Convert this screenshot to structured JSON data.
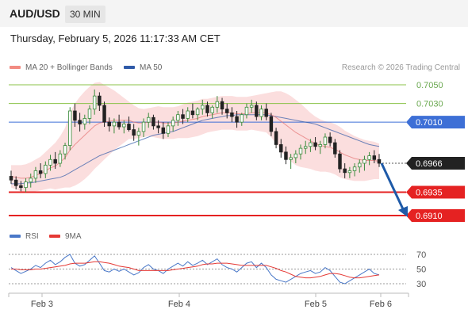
{
  "header": {
    "symbol": "AUD/USD",
    "timeframe": "30 MIN"
  },
  "datetime": "Thursday, February 5, 2026 11:17:33 AM CET",
  "credit": "Research © 2026 Trading Central",
  "legend": {
    "bollinger": {
      "label": "MA 20 + Bollinger Bands",
      "color": "#f28b82"
    },
    "ma50": {
      "label": "MA 50",
      "color": "#2f5aa8"
    },
    "rsi": {
      "label": "RSI",
      "color": "#4a78c8"
    },
    "rsi_ma": {
      "label": "9MA",
      "color": "#e53935"
    }
  },
  "chart_data": {
    "type": "candlestick",
    "x_ticks": [
      "Feb 3",
      "Feb 4",
      "Feb 5",
      "Feb 6"
    ],
    "price_range": [
      0.6905,
      0.7058
    ],
    "levels": [
      {
        "value": 0.705,
        "label": "0.7050",
        "kind": "resistance-green",
        "color": "#8bc34a"
      },
      {
        "value": 0.703,
        "label": "0.7030",
        "kind": "resistance-green",
        "color": "#8bc34a"
      },
      {
        "value": 0.701,
        "label": "0.7010",
        "kind": "pivot",
        "color": "#3d6fd6"
      },
      {
        "value": 0.6966,
        "label": "0.6966",
        "kind": "last-price",
        "color": "#222222"
      },
      {
        "value": 0.6935,
        "label": "0.6935",
        "kind": "support",
        "color": "#e52222"
      },
      {
        "value": 0.691,
        "label": "0.6910",
        "kind": "support",
        "color": "#e52222"
      }
    ],
    "candles": [
      [
        0.6952,
        0.6958,
        0.6944,
        0.6948
      ],
      [
        0.6948,
        0.6952,
        0.6938,
        0.6942
      ],
      [
        0.6942,
        0.6947,
        0.6936,
        0.694
      ],
      [
        0.694,
        0.695,
        0.6935,
        0.6946
      ],
      [
        0.6946,
        0.6955,
        0.694,
        0.695
      ],
      [
        0.695,
        0.6962,
        0.6945,
        0.6958
      ],
      [
        0.6958,
        0.6966,
        0.695,
        0.6955
      ],
      [
        0.6955,
        0.6968,
        0.695,
        0.6964
      ],
      [
        0.6964,
        0.6975,
        0.6958,
        0.697
      ],
      [
        0.697,
        0.6978,
        0.696,
        0.6966
      ],
      [
        0.6966,
        0.698,
        0.6962,
        0.6976
      ],
      [
        0.6976,
        0.6988,
        0.697,
        0.6985
      ],
      [
        0.6985,
        0.7026,
        0.698,
        0.7022
      ],
      [
        0.7022,
        0.703,
        0.7005,
        0.7012
      ],
      [
        0.7012,
        0.702,
        0.7,
        0.7008
      ],
      [
        0.7008,
        0.7018,
        0.7002,
        0.7014
      ],
      [
        0.7014,
        0.7028,
        0.7008,
        0.7024
      ],
      [
        0.7024,
        0.7045,
        0.7018,
        0.7038
      ],
      [
        0.7038,
        0.7042,
        0.7022,
        0.7028
      ],
      [
        0.7028,
        0.7032,
        0.7005,
        0.701
      ],
      [
        0.701,
        0.7015,
        0.7,
        0.7006
      ],
      [
        0.7006,
        0.7014,
        0.6998,
        0.701
      ],
      [
        0.701,
        0.7018,
        0.7002,
        0.7005
      ],
      [
        0.7005,
        0.7012,
        0.6998,
        0.7008
      ],
      [
        0.7008,
        0.7016,
        0.7,
        0.7002
      ],
      [
        0.7002,
        0.7008,
        0.699,
        0.6996
      ],
      [
        0.6996,
        0.7004,
        0.6985,
        0.7
      ],
      [
        0.7,
        0.7014,
        0.6994,
        0.701
      ],
      [
        0.701,
        0.702,
        0.7004,
        0.7015
      ],
      [
        0.7015,
        0.7018,
        0.7002,
        0.7006
      ],
      [
        0.7006,
        0.7012,
        0.6998,
        0.7004
      ],
      [
        0.7004,
        0.701,
        0.6992,
        0.6998
      ],
      [
        0.6998,
        0.701,
        0.6994,
        0.7006
      ],
      [
        0.7006,
        0.7016,
        0.7,
        0.7012
      ],
      [
        0.7012,
        0.7022,
        0.7006,
        0.7018
      ],
      [
        0.7018,
        0.7024,
        0.7008,
        0.7014
      ],
      [
        0.7014,
        0.7026,
        0.701,
        0.7022
      ],
      [
        0.7022,
        0.703,
        0.7014,
        0.7018
      ],
      [
        0.7018,
        0.7026,
        0.7012,
        0.7024
      ],
      [
        0.7024,
        0.7034,
        0.7018,
        0.7028
      ],
      [
        0.7028,
        0.7032,
        0.7016,
        0.702
      ],
      [
        0.702,
        0.7028,
        0.7014,
        0.7026
      ],
      [
        0.7026,
        0.7038,
        0.702,
        0.7032
      ],
      [
        0.7032,
        0.7036,
        0.7018,
        0.7024
      ],
      [
        0.7024,
        0.703,
        0.7014,
        0.702
      ],
      [
        0.702,
        0.7026,
        0.701,
        0.7016
      ],
      [
        0.7016,
        0.7022,
        0.7004,
        0.701
      ],
      [
        0.701,
        0.702,
        0.7006,
        0.7018
      ],
      [
        0.7018,
        0.703,
        0.7014,
        0.7026
      ],
      [
        0.7026,
        0.7034,
        0.702,
        0.7028
      ],
      [
        0.7028,
        0.7032,
        0.7012,
        0.7016
      ],
      [
        0.7016,
        0.7028,
        0.7012,
        0.7024
      ],
      [
        0.7024,
        0.703,
        0.7012,
        0.7016
      ],
      [
        0.7016,
        0.702,
        0.6995,
        0.7
      ],
      [
        0.7,
        0.7004,
        0.6982,
        0.6986
      ],
      [
        0.6986,
        0.6992,
        0.6972,
        0.6978
      ],
      [
        0.6978,
        0.6984,
        0.6965,
        0.697
      ],
      [
        0.697,
        0.6976,
        0.696,
        0.6972
      ],
      [
        0.6972,
        0.698,
        0.6966,
        0.6976
      ],
      [
        0.6976,
        0.6986,
        0.697,
        0.6982
      ],
      [
        0.6982,
        0.699,
        0.6976,
        0.6984
      ],
      [
        0.6984,
        0.6992,
        0.6978,
        0.6988
      ],
      [
        0.6988,
        0.6994,
        0.698,
        0.6984
      ],
      [
        0.6984,
        0.699,
        0.6976,
        0.6986
      ],
      [
        0.6986,
        0.6998,
        0.6982,
        0.6994
      ],
      [
        0.6994,
        0.6999,
        0.6984,
        0.6988
      ],
      [
        0.6988,
        0.6992,
        0.6972,
        0.6976
      ],
      [
        0.6976,
        0.698,
        0.6956,
        0.696
      ],
      [
        0.696,
        0.6966,
        0.695,
        0.6956
      ],
      [
        0.6956,
        0.6962,
        0.695,
        0.6958
      ],
      [
        0.6958,
        0.6966,
        0.6952,
        0.6962
      ],
      [
        0.6962,
        0.697,
        0.6956,
        0.6966
      ],
      [
        0.6966,
        0.6974,
        0.6958,
        0.697
      ],
      [
        0.697,
        0.6978,
        0.6964,
        0.6974
      ],
      [
        0.6974,
        0.698,
        0.6966,
        0.697
      ],
      [
        0.697,
        0.6976,
        0.6962,
        0.6966
      ]
    ],
    "ma20": [
      0.6952,
      0.6951,
      0.695,
      0.695,
      0.6951,
      0.6953,
      0.6955,
      0.6958,
      0.6961,
      0.6963,
      0.6967,
      0.6972,
      0.698,
      0.6986,
      0.6991,
      0.6996,
      0.7001,
      0.7006,
      0.7009,
      0.701,
      0.7011,
      0.7012,
      0.7012,
      0.7012,
      0.7012,
      0.701,
      0.7009,
      0.7009,
      0.701,
      0.701,
      0.701,
      0.7009,
      0.7009,
      0.7009,
      0.701,
      0.7011,
      0.7012,
      0.7013,
      0.7014,
      0.7016,
      0.7017,
      0.7018,
      0.7019,
      0.702,
      0.702,
      0.702,
      0.7019,
      0.7019,
      0.7019,
      0.702,
      0.702,
      0.702,
      0.702,
      0.7018,
      0.7015,
      0.7011,
      0.7007,
      0.7003,
      0.6999,
      0.6996,
      0.6993,
      0.699,
      0.6987,
      0.6985,
      0.6984,
      0.6983,
      0.6981,
      0.6978,
      0.6975,
      0.6973,
      0.6971,
      0.697,
      0.6969,
      0.6969,
      0.6969,
      0.6968
    ],
    "bb_width": [
      0.0012,
      0.0013,
      0.0014,
      0.0015,
      0.0016,
      0.0017,
      0.0018,
      0.002,
      0.0022,
      0.0025,
      0.0028,
      0.0032,
      0.004,
      0.0044,
      0.0046,
      0.0047,
      0.0047,
      0.0046,
      0.0044,
      0.004,
      0.0036,
      0.0032,
      0.0028,
      0.0024,
      0.002,
      0.0018,
      0.0016,
      0.0015,
      0.0015,
      0.0016,
      0.0017,
      0.0017,
      0.0017,
      0.0017,
      0.0017,
      0.0018,
      0.0019,
      0.0019,
      0.0019,
      0.0019,
      0.0018,
      0.0018,
      0.0018,
      0.0018,
      0.0018,
      0.0018,
      0.0018,
      0.0018,
      0.0018,
      0.0018,
      0.0019,
      0.002,
      0.0021,
      0.0024,
      0.0028,
      0.0032,
      0.0034,
      0.0035,
      0.0035,
      0.0034,
      0.0032,
      0.003,
      0.0029,
      0.0028,
      0.0027,
      0.0027,
      0.0027,
      0.0027,
      0.0026,
      0.0025,
      0.0024,
      0.0023,
      0.0022,
      0.0021,
      0.002,
      0.0019
    ],
    "ma50": [
      0.6944,
      0.6944,
      0.6944,
      0.6945,
      0.6945,
      0.6946,
      0.6947,
      0.6948,
      0.6949,
      0.695,
      0.6951,
      0.6953,
      0.6956,
      0.6959,
      0.6962,
      0.6965,
      0.6968,
      0.6971,
      0.6974,
      0.6976,
      0.6978,
      0.698,
      0.6982,
      0.6984,
      0.6986,
      0.6988,
      0.699,
      0.6992,
      0.6994,
      0.6996,
      0.6997,
      0.6998,
      0.6999,
      0.7,
      0.7002,
      0.7004,
      0.7006,
      0.7008,
      0.701,
      0.7012,
      0.7013,
      0.7014,
      0.7015,
      0.7016,
      0.7017,
      0.7017,
      0.7018,
      0.7018,
      0.7018,
      0.7018,
      0.7018,
      0.7018,
      0.7018,
      0.7017,
      0.7016,
      0.7015,
      0.7014,
      0.7013,
      0.7012,
      0.7011,
      0.701,
      0.7009,
      0.7008,
      0.7006,
      0.7004,
      0.7002,
      0.7,
      0.6998,
      0.6996,
      0.6994,
      0.6992,
      0.699,
      0.6988,
      0.6986,
      0.6985,
      0.6984
    ],
    "rsi": {
      "range": [
        20,
        80
      ],
      "levels": [
        "70",
        "50",
        "30"
      ],
      "values": [
        52,
        48,
        44,
        47,
        50,
        55,
        52,
        58,
        62,
        56,
        60,
        66,
        70,
        58,
        54,
        56,
        62,
        68,
        58,
        48,
        46,
        50,
        47,
        50,
        46,
        42,
        45,
        52,
        56,
        50,
        48,
        44,
        50,
        54,
        58,
        54,
        60,
        55,
        58,
        62,
        56,
        60,
        64,
        56,
        52,
        50,
        46,
        52,
        58,
        60,
        52,
        58,
        52,
        42,
        36,
        34,
        32,
        36,
        40,
        44,
        46,
        48,
        44,
        46,
        52,
        48,
        40,
        32,
        30,
        34,
        38,
        42,
        46,
        50,
        44,
        42
      ],
      "ma9": [
        50,
        50,
        49,
        49,
        49,
        50,
        50,
        51,
        52,
        53,
        54,
        55,
        57,
        58,
        58,
        58,
        59,
        60,
        60,
        59,
        58,
        56,
        54,
        53,
        52,
        50,
        48,
        48,
        48,
        48,
        48,
        48,
        48,
        49,
        50,
        51,
        52,
        53,
        54,
        56,
        57,
        57,
        58,
        58,
        58,
        57,
        56,
        55,
        55,
        55,
        55,
        55,
        55,
        53,
        51,
        48,
        46,
        43,
        40,
        39,
        38,
        38,
        39,
        40,
        42,
        44,
        44,
        43,
        41,
        39,
        38,
        38,
        39,
        40,
        41,
        42
      ]
    }
  }
}
